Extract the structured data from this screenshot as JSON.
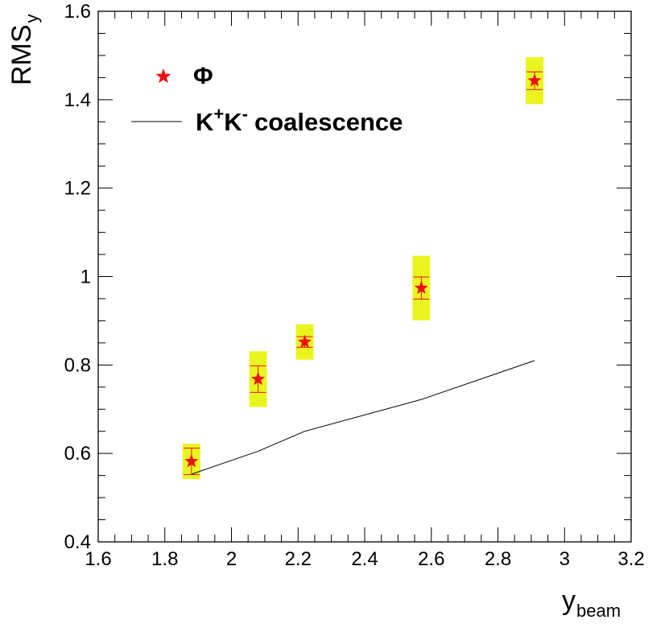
{
  "chart_data": {
    "type": "scatter",
    "title": "",
    "xlabel": {
      "main": "y",
      "sub": "beam"
    },
    "ylabel": {
      "main": "RMS",
      "sub": "y"
    },
    "xlim": [
      1.6,
      3.2
    ],
    "ylim": [
      0.4,
      1.6
    ],
    "x_ticks": [
      "1.6",
      "1.8",
      "2",
      "2.2",
      "2.4",
      "2.6",
      "2.8",
      "3",
      "3.2"
    ],
    "y_ticks": [
      "0.4",
      "0.6",
      "0.8",
      "1",
      "1.2",
      "1.4",
      "1.6"
    ],
    "series": [
      {
        "name": "Φ",
        "kind": "points",
        "marker": "star",
        "color": "#ee1111",
        "box_color": "#eaf520",
        "points": [
          {
            "x": 1.88,
            "y": 0.582,
            "stat_err": 0.03,
            "sys_err": 0.04
          },
          {
            "x": 2.08,
            "y": 0.768,
            "stat_err": 0.03,
            "sys_err": 0.063
          },
          {
            "x": 2.22,
            "y": 0.852,
            "stat_err": 0.012,
            "sys_err": 0.04
          },
          {
            "x": 2.57,
            "y": 0.974,
            "stat_err": 0.025,
            "sys_err": 0.073
          },
          {
            "x": 2.91,
            "y": 1.443,
            "stat_err": 0.02,
            "sys_err": 0.053
          }
        ]
      },
      {
        "name": "coalescence",
        "legend": {
          "k1": "K",
          "sup1": "+",
          "k2": "K",
          "sup2": "-",
          "rest": "coalescence"
        },
        "kind": "line",
        "color": "#000000",
        "x": [
          1.88,
          2.08,
          2.22,
          2.57,
          2.91
        ],
        "y": [
          0.553,
          0.605,
          0.65,
          0.722,
          0.81
        ]
      }
    ],
    "legend_position": "top-left"
  }
}
